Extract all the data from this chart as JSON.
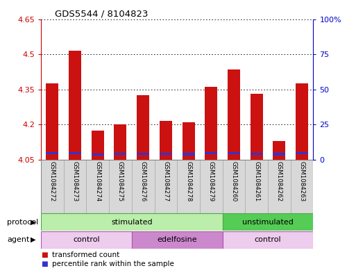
{
  "title": "GDS5544 / 8104823",
  "samples": [
    "GSM1084272",
    "GSM1084273",
    "GSM1084274",
    "GSM1084275",
    "GSM1084276",
    "GSM1084277",
    "GSM1084278",
    "GSM1084279",
    "GSM1084260",
    "GSM1084261",
    "GSM1084262",
    "GSM1084263"
  ],
  "red_values": [
    4.375,
    4.515,
    4.175,
    4.2,
    4.325,
    4.215,
    4.21,
    4.36,
    4.435,
    4.33,
    4.13,
    4.375
  ],
  "blue_bottoms": [
    4.073,
    4.072,
    4.067,
    4.07,
    4.07,
    4.07,
    4.068,
    4.072,
    4.073,
    4.07,
    4.068,
    4.072
  ],
  "blue_heights": [
    0.01,
    0.01,
    0.01,
    0.01,
    0.01,
    0.01,
    0.01,
    0.01,
    0.01,
    0.01,
    0.01,
    0.01
  ],
  "ymin": 4.05,
  "ymax": 4.65,
  "yticks": [
    4.05,
    4.2,
    4.35,
    4.5,
    4.65
  ],
  "ytick_labels": [
    "4.05",
    "4.2",
    "4.35",
    "4.5",
    "4.65"
  ],
  "y2min": 0,
  "y2max": 100,
  "y2ticks": [
    0,
    25,
    50,
    75,
    100
  ],
  "y2tick_labels": [
    "0",
    "25",
    "50",
    "75",
    "100%"
  ],
  "bar_width": 0.55,
  "red_color": "#cc1111",
  "blue_color": "#3333cc",
  "protocol_labels": [
    {
      "text": "stimulated",
      "start": 0,
      "end": 7,
      "color": "#bbeeaa"
    },
    {
      "text": "unstimulated",
      "start": 8,
      "end": 11,
      "color": "#55cc55"
    }
  ],
  "agent_labels": [
    {
      "text": "control",
      "start": 0,
      "end": 3,
      "color": "#eeccee"
    },
    {
      "text": "edelfosine",
      "start": 4,
      "end": 7,
      "color": "#cc88cc"
    },
    {
      "text": "control",
      "start": 8,
      "end": 11,
      "color": "#eeccee"
    }
  ],
  "protocol_row_label": "protocol",
  "agent_row_label": "agent",
  "legend_items": [
    {
      "label": "transformed count",
      "color": "#cc1111"
    },
    {
      "label": "percentile rank within the sample",
      "color": "#3333cc"
    }
  ],
  "bg_color": "#ffffff",
  "plot_bg": "#ffffff",
  "grid_color": "#000000",
  "tick_label_color_left": "#cc0000",
  "tick_label_color_right": "#0000cc"
}
